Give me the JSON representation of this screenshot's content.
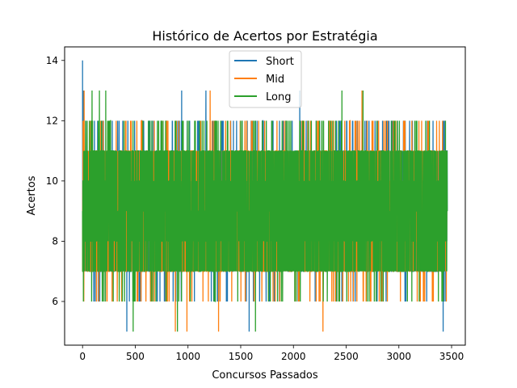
{
  "chart_data": {
    "type": "line",
    "title": "Histórico de Acertos por Estratégia",
    "xlabel": "Concursos Passados",
    "ylabel": "Acertos",
    "xlim": [
      -170,
      3630
    ],
    "ylim": [
      4.55,
      14.45
    ],
    "xticks": [
      0,
      500,
      1000,
      1500,
      2000,
      2500,
      3000,
      3500
    ],
    "yticks": [
      6,
      8,
      10,
      12,
      14
    ],
    "grid": false,
    "legend": {
      "position": "top-center"
    },
    "n_points": 3460,
    "series": [
      {
        "name": "Short",
        "color": "#1f77b4",
        "typical_range": [
          7,
          11
        ],
        "extremes": [
          [
            0,
            14
          ],
          [
            10,
            13
          ],
          [
            420,
            5
          ],
          [
            940,
            13
          ],
          [
            1170,
            13
          ],
          [
            1580,
            5
          ],
          [
            2060,
            13
          ],
          [
            3420,
            5
          ],
          [
            3440,
            12
          ]
        ]
      },
      {
        "name": "Mid",
        "color": "#ff7f0e",
        "typical_range": [
          7,
          11
        ],
        "extremes": [
          [
            15,
            13
          ],
          [
            880,
            5
          ],
          [
            990,
            5
          ],
          [
            1210,
            13
          ],
          [
            1290,
            5
          ],
          [
            2280,
            5
          ],
          [
            2650,
            13
          ],
          [
            3450,
            6
          ]
        ]
      },
      {
        "name": "Long",
        "color": "#2ca02c",
        "typical_range": [
          7,
          11
        ],
        "extremes": [
          [
            90,
            13
          ],
          [
            160,
            13
          ],
          [
            220,
            13
          ],
          [
            480,
            5
          ],
          [
            900,
            5
          ],
          [
            1640,
            5
          ],
          [
            2460,
            13
          ],
          [
            2660,
            13
          ],
          [
            3460,
            11
          ]
        ]
      }
    ]
  }
}
